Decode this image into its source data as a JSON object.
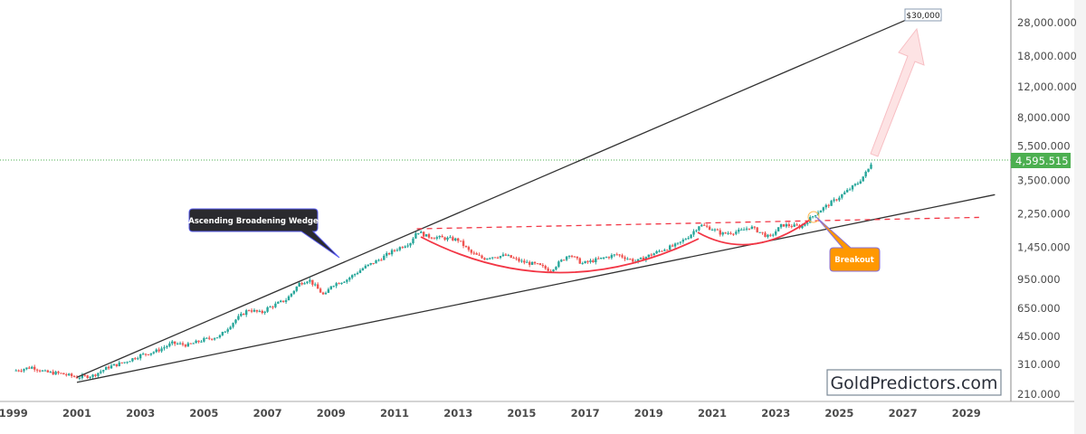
{
  "chart_data": {
    "type": "candlestick",
    "scale": "log",
    "y_ticks": [
      "28,000.000",
      "18,000.000",
      "12,000.000",
      "8,000.000",
      "5,500.000",
      "3,500.000",
      "2,250.000",
      "1,450.000",
      "950.000",
      "650.000",
      "450.000",
      "310.000",
      "210.000"
    ],
    "y_tick_values": [
      28000,
      18000,
      12000,
      8000,
      5500,
      3500,
      2250,
      1450,
      950,
      650,
      450,
      310,
      210
    ],
    "x_ticks": [
      "1999",
      "2001",
      "2003",
      "2005",
      "2007",
      "2009",
      "2011",
      "2013",
      "2015",
      "2017",
      "2019",
      "2021",
      "2023",
      "2025",
      "2027",
      "2029"
    ],
    "xlim": [
      1999,
      2030
    ],
    "last_price": "4,595.515",
    "last_price_value": 4595.515,
    "price_path": [
      [
        1999.0,
        285
      ],
      [
        1999.6,
        300
      ],
      [
        2000.0,
        280
      ],
      [
        2000.5,
        275
      ],
      [
        2001.0,
        262
      ],
      [
        2001.5,
        268
      ],
      [
        2002.0,
        300
      ],
      [
        2002.5,
        320
      ],
      [
        2003.0,
        350
      ],
      [
        2003.5,
        370
      ],
      [
        2004.0,
        410
      ],
      [
        2004.5,
        400
      ],
      [
        2005.0,
        430
      ],
      [
        2005.5,
        450
      ],
      [
        2006.0,
        560
      ],
      [
        2006.4,
        640
      ],
      [
        2006.8,
        610
      ],
      [
        2007.0,
        650
      ],
      [
        2007.6,
        730
      ],
      [
        2008.0,
        900
      ],
      [
        2008.3,
        950
      ],
      [
        2008.8,
        760
      ],
      [
        2009.0,
        880
      ],
      [
        2009.5,
        950
      ],
      [
        2010.0,
        1100
      ],
      [
        2010.5,
        1230
      ],
      [
        2011.0,
        1400
      ],
      [
        2011.5,
        1550
      ],
      [
        2011.7,
        1800
      ],
      [
        2012.0,
        1680
      ],
      [
        2012.5,
        1640
      ],
      [
        2013.0,
        1600
      ],
      [
        2013.4,
        1350
      ],
      [
        2013.8,
        1250
      ],
      [
        2014.0,
        1280
      ],
      [
        2014.5,
        1300
      ],
      [
        2015.0,
        1200
      ],
      [
        2015.5,
        1150
      ],
      [
        2015.9,
        1070
      ],
      [
        2016.5,
        1330
      ],
      [
        2016.9,
        1170
      ],
      [
        2017.5,
        1250
      ],
      [
        2018.0,
        1320
      ],
      [
        2018.6,
        1200
      ],
      [
        2019.0,
        1300
      ],
      [
        2019.5,
        1420
      ],
      [
        2019.9,
        1500
      ],
      [
        2020.3,
        1700
      ],
      [
        2020.6,
        1950
      ],
      [
        2021.0,
        1850
      ],
      [
        2021.3,
        1730
      ],
      [
        2021.9,
        1800
      ],
      [
        2022.2,
        1900
      ],
      [
        2022.8,
        1650
      ],
      [
        2023.2,
        1950
      ],
      [
        2023.8,
        1900
      ],
      [
        2024.0,
        2050
      ],
      [
        2024.3,
        2300
      ],
      [
        2024.8,
        2650
      ],
      [
        2025.2,
        3000
      ],
      [
        2025.6,
        3400
      ],
      [
        2025.9,
        4000
      ],
      [
        2026.05,
        4595
      ]
    ],
    "annotations": {
      "pattern_label": "Ascending Broadening Wedge",
      "breakout_label": "Breakout",
      "target_label": "$30,000"
    },
    "trendlines": {
      "upper_wedge": [
        [
          2001.0,
          262
        ],
        [
          2027.3,
          30000
        ]
      ],
      "lower_wedge": [
        [
          2001.0,
          245
        ],
        [
          2029.9,
          2900
        ]
      ],
      "neckline": [
        [
          2011.7,
          1850
        ],
        [
          2029.4,
          2150
        ]
      ]
    }
  },
  "watermark": "GoldPredictors.com",
  "colors": {
    "up": "#26a69a",
    "down": "#ef5350",
    "accent_green": "#4caf50",
    "arc": "#f23645",
    "breakout": "#ff9800",
    "label_dark": "#2a2a2e",
    "arrow": "#f7c5c8"
  }
}
